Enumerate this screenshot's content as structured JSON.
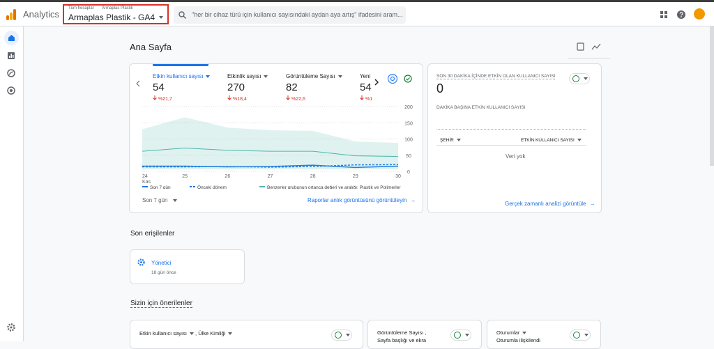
{
  "topbar": {
    "app": "Analytics",
    "breadcrumb": [
      "Tüm hesaplar",
      "Armaplas Plastik"
    ],
    "property": "Armaplas Plastik - GA4",
    "search": "\"her bir cihaz türü için kullanıcı sayısındaki aydan aya artış\" ifadesini aram..."
  },
  "page_title": "Ana Sayfa",
  "metrics": [
    {
      "name": "Etkin kullanıcı sayısı",
      "value": 54,
      "change": "%21,7"
    },
    {
      "name": "Etkinlik sayısı",
      "value": 270,
      "change": "%18,4"
    },
    {
      "name": "Görüntüleme Sayısı",
      "value": 82,
      "change": "%22,6"
    },
    {
      "name": "Yeni",
      "value": 54,
      "change": "%1"
    }
  ],
  "chart_data": {
    "type": "line",
    "categories": [
      "24",
      "25",
      "26",
      "27",
      "28",
      "29",
      "30"
    ],
    "x_sublabel": "Kas",
    "ylim": [
      0,
      200
    ],
    "yticks": [
      0,
      50,
      100,
      150,
      200
    ],
    "grid": true,
    "series": [
      {
        "name": "Son 7 gün",
        "color": "#1a73e8",
        "values": [
          16,
          16,
          14,
          15,
          19,
          12,
          16
        ]
      },
      {
        "name": "Önceki dönem",
        "color": "#1a73e8",
        "dashed": true,
        "values": [
          14,
          14,
          15,
          13,
          15,
          20,
          21
        ]
      },
      {
        "name": "Benzerler grubunun ortanca değeri ve aralığı: Plastik ve Polimerler",
        "color": "#4db6ac",
        "values": [
          62,
          72,
          65,
          62,
          62,
          48,
          46
        ],
        "upper": [
          130,
          167,
          135,
          127,
          125,
          92,
          88
        ],
        "lower": [
          6,
          6,
          6,
          6,
          6,
          6,
          6
        ]
      }
    ]
  },
  "overview_footer": {
    "period": "Son 7 gün",
    "link": "Raporlar anlık görüntüsünü görüntüleyin"
  },
  "realtime": {
    "title": "SON 30 DAKİKA İÇİNDE ETKİN OLAN KULLANICI SAYISI",
    "value": 0,
    "subtitle": "DAKİKA BAŞINA ETKİN KULLANICI SAYISI",
    "col1": "ŞEHİR",
    "col2": "ETKİN KULLANICI SAYISI",
    "empty": "Veri yok",
    "link": "Gerçek zamanlı analizi görüntüle"
  },
  "recent": {
    "title": "Son erişilenler",
    "item": "Yönetici",
    "time": "18 gün önce"
  },
  "suggested": {
    "title": "Sizin için önerilenler",
    "cards": [
      {
        "line1": "Etkin kullanıcı sayısı",
        "line2": ", Ülke Kimliği"
      },
      {
        "line1": "Görüntüleme Sayısı ,",
        "line2": "Sayfa başlığı ve ekra"
      },
      {
        "line1": "Oturumlar",
        "line2": "Oturumla ilişkilendi"
      }
    ]
  }
}
